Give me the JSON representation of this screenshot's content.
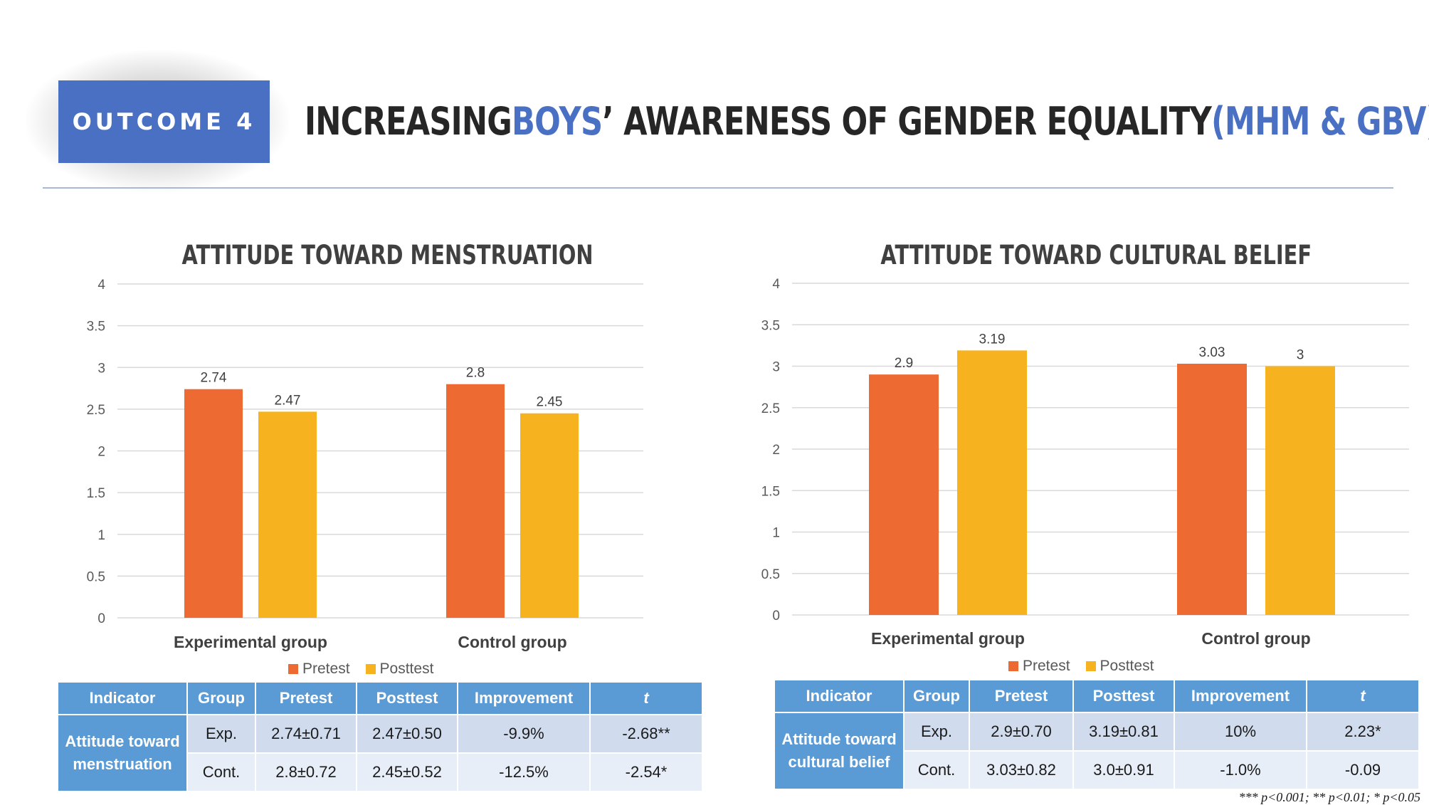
{
  "header": {
    "badge": "OUTCOME 4",
    "title_parts": [
      "INCREASING ",
      "BOYS",
      "’ AWARENESS OF GENDER EQUALITY ",
      "(MHM & GBV)"
    ]
  },
  "colors": {
    "pretest": "#ed6a33",
    "posttest": "#f7b21f",
    "accent": "#4a70c4",
    "table_header": "#5b9bd5"
  },
  "chart_data": [
    {
      "type": "bar",
      "title": "ATTITUDE TOWARD MENSTRUATION",
      "categories": [
        "Experimental group",
        "Control group"
      ],
      "series": [
        {
          "name": "Pretest",
          "values": [
            2.74,
            2.8
          ]
        },
        {
          "name": "Posttest",
          "values": [
            2.47,
            2.45
          ]
        }
      ],
      "data_labels": [
        [
          "2.74",
          "2.8"
        ],
        [
          "2.47",
          "2.45"
        ]
      ],
      "ylim": [
        0,
        4
      ],
      "yticks": [
        "0",
        "0.5",
        "1",
        "1.5",
        "2",
        "2.5",
        "3",
        "3.5",
        "4"
      ],
      "grid": true,
      "legend": "bottom"
    },
    {
      "type": "bar",
      "title": "ATTITUDE TOWARD CULTURAL BELIEF",
      "categories": [
        "Experimental group",
        "Control group"
      ],
      "series": [
        {
          "name": "Pretest",
          "values": [
            2.9,
            3.03
          ]
        },
        {
          "name": "Posttest",
          "values": [
            3.19,
            3.0
          ]
        }
      ],
      "data_labels": [
        [
          "2.9",
          "3.03"
        ],
        [
          "3.19",
          "3"
        ]
      ],
      "ylim": [
        0,
        4
      ],
      "yticks": [
        "0",
        "0.5",
        "1",
        "1.5",
        "2",
        "2.5",
        "3",
        "3.5",
        "4"
      ],
      "grid": true,
      "legend": "bottom"
    }
  ],
  "tables": [
    {
      "headers": [
        "Indicator",
        "Group",
        "Pretest",
        "Posttest",
        "Improvement",
        "t"
      ],
      "indicator": [
        "Attitude toward",
        "menstruation"
      ],
      "rows": [
        [
          "Exp.",
          "2.74±0.71",
          "2.47±0.50",
          "-9.9%",
          "-2.68**"
        ],
        [
          "Cont.",
          "2.8±0.72",
          "2.45±0.52",
          "-12.5%",
          "-2.54*"
        ]
      ]
    },
    {
      "headers": [
        "Indicator",
        "Group",
        "Pretest",
        "Posttest",
        "Improvement",
        "t"
      ],
      "indicator": [
        "Attitude toward",
        "cultural belief"
      ],
      "rows": [
        [
          "Exp.",
          "2.9±0.70",
          "3.19±0.81",
          "10%",
          "2.23*"
        ],
        [
          "Cont.",
          "3.03±0.82",
          "3.0±0.91",
          "-1.0%",
          "-0.09"
        ]
      ]
    }
  ],
  "footnote": "*** p<0.001; ** p<0.01; * p<0.05"
}
